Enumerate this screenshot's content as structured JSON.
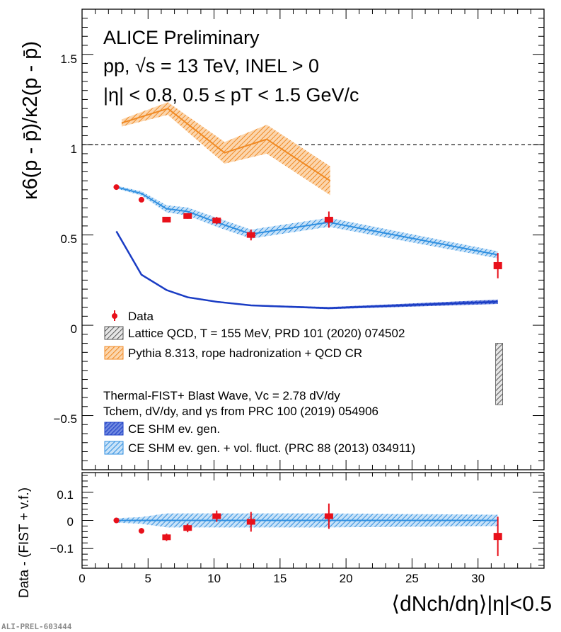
{
  "chart_data": {
    "type": "scatter",
    "header_lines": [
      "ALICE Preliminary",
      "pp, √s = 13 TeV, INEL > 0",
      "|η| < 0.8, 0.5 ≤ pT < 1.5 GeV/c"
    ],
    "ylabel_top": "κ6(p - p̄)/κ2(p - p̄)",
    "ylabel_bottom": "Data - (FIST + v.f.)",
    "xlabel": "⟨dNch/dη⟩|η|<0.5",
    "xlim": [
      0,
      35
    ],
    "ylim_top": [
      -0.8,
      1.75
    ],
    "ylim_bottom": [
      -0.17,
      0.17
    ],
    "x_ticks": [
      "0",
      "5",
      "10",
      "15",
      "20",
      "25",
      "30"
    ],
    "y_ticks_top": [
      "−0.5",
      "0",
      "0.5",
      "1",
      "1.5"
    ],
    "y_ticks_bottom": [
      "−0.1",
      "0",
      "0.1"
    ],
    "reference_line": 1,
    "legend_main": [
      {
        "label": "Data",
        "color": "#e8101a"
      },
      {
        "label": "Lattice QCD, T = 155 MeV, PRD 101 (2020) 074502",
        "color": "#555555"
      },
      {
        "label": "Pythia 8.313, rope hadronization + QCD CR",
        "color": "#f08a24"
      }
    ],
    "legend_fist_title": [
      "Thermal-FIST+ Blast Wave, Vc = 2.78 dV/dy",
      "Tchem, dV/dy, and γs from PRC 100 (2019) 054906"
    ],
    "legend_fist": [
      {
        "label": "CE SHM ev. gen.",
        "color": "#1a3cc4"
      },
      {
        "label": "CE SHM ev. gen. + vol. fluct. (PRC 88 (2013) 034911)",
        "color": "#2f8fe0"
      }
    ],
    "series": [
      {
        "name": "Data",
        "x": [
          2.6,
          4.5,
          6.4,
          8.0,
          10.2,
          12.8,
          18.7,
          31.5
        ],
        "y": [
          0.765,
          0.695,
          0.585,
          0.605,
          0.58,
          0.5,
          0.585,
          0.33
        ],
        "err": [
          0.008,
          0.01,
          0.012,
          0.015,
          0.02,
          0.03,
          0.045,
          0.07
        ]
      },
      {
        "name": "Pythia",
        "x": [
          3.0,
          6.5,
          10.8,
          14.0,
          18.8
        ],
        "y": [
          1.12,
          1.2,
          0.955,
          1.03,
          0.8
        ],
        "band": [
          0.02,
          0.035,
          0.06,
          0.08,
          0.08
        ]
      },
      {
        "name": "CE SHM ev. gen.",
        "x": [
          2.6,
          4.5,
          6.4,
          8.0,
          10.2,
          12.8,
          18.7,
          31.5
        ],
        "y": [
          0.52,
          0.28,
          0.195,
          0.155,
          0.13,
          0.11,
          0.095,
          0.13
        ],
        "band": [
          0.004,
          0.004,
          0.004,
          0.004,
          0.004,
          0.004,
          0.006,
          0.012
        ]
      },
      {
        "name": "CE SHM ev. gen. + vol. fluct.",
        "x": [
          2.6,
          4.5,
          6.4,
          8.0,
          10.2,
          12.8,
          18.7,
          31.5
        ],
        "y": [
          0.765,
          0.73,
          0.645,
          0.63,
          0.57,
          0.505,
          0.57,
          0.39
        ],
        "band": [
          0.008,
          0.012,
          0.02,
          0.022,
          0.025,
          0.025,
          0.025,
          0.02
        ]
      },
      {
        "name": "Lattice QCD",
        "x": [
          31.6
        ],
        "y_range": [
          -0.44,
          -0.1
        ]
      }
    ],
    "ratio_series": [
      {
        "name": "Data - (FIST + v.f.)",
        "x": [
          2.6,
          4.5,
          6.4,
          8.0,
          10.2,
          12.8,
          18.7,
          31.5
        ],
        "y": [
          0.0,
          -0.037,
          -0.06,
          -0.027,
          0.015,
          -0.005,
          0.015,
          -0.057
        ],
        "err": [
          0.008,
          0.01,
          0.013,
          0.015,
          0.02,
          0.035,
          0.045,
          0.07
        ]
      },
      {
        "name": "vol. fluct. band",
        "x": [
          2.6,
          4.5,
          6.4,
          8.0,
          10.2,
          12.8,
          18.7,
          31.5
        ],
        "band": [
          0.008,
          0.012,
          0.025,
          0.025,
          0.025,
          0.025,
          0.025,
          0.02
        ]
      }
    ],
    "watermark": "ALI-PREL-603444"
  }
}
